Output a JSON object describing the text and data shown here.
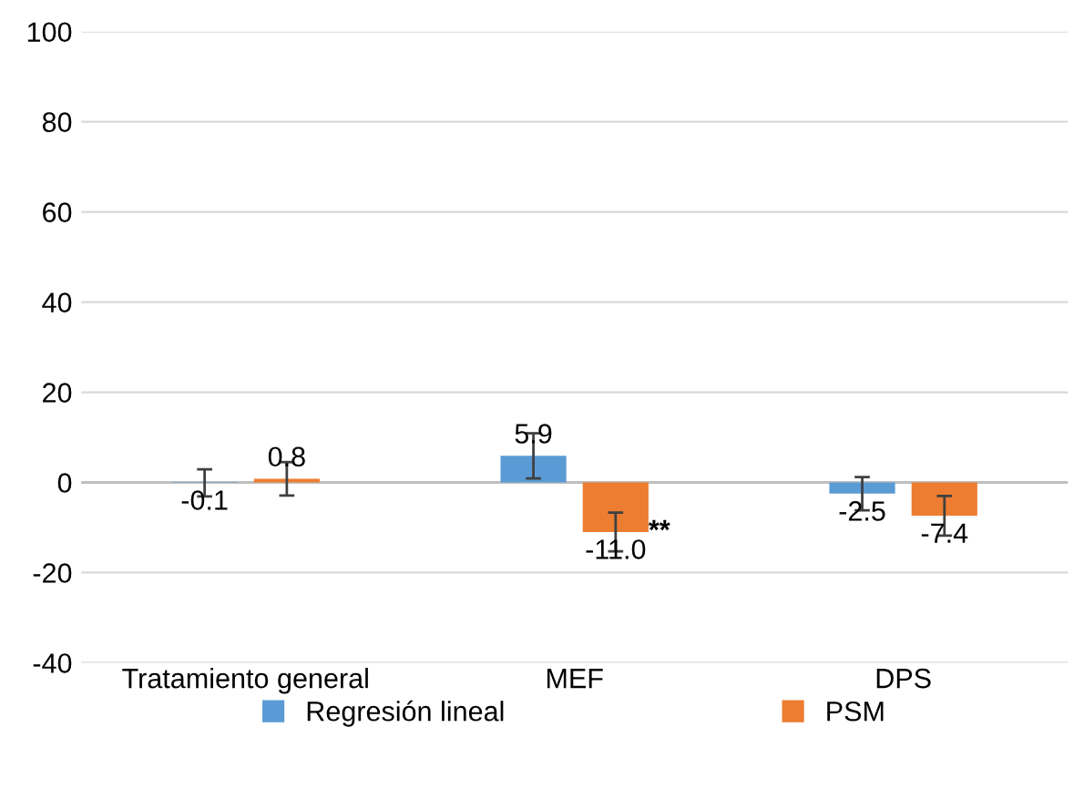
{
  "chart_data": {
    "type": "bar",
    "categories": [
      "Tratamiento general",
      "MEF",
      "DPS"
    ],
    "series": [
      {
        "name": "Regresión lineal",
        "color": "#5b9bd5",
        "values": [
          -0.1,
          5.9,
          -2.5
        ],
        "value_labels": [
          "-0.1",
          "5.9",
          "-2.5"
        ],
        "errors": [
          3.0,
          5.0,
          3.7
        ]
      },
      {
        "name": "PSM",
        "color": "#ed7d31",
        "values": [
          0.8,
          -11.0,
          -7.4
        ],
        "value_labels": [
          "0.8",
          "-11.0",
          "-7.4"
        ],
        "errors": [
          3.7,
          4.3,
          4.4
        ]
      }
    ],
    "ylim": [
      -40,
      100
    ],
    "yticks": [
      -40,
      -20,
      0,
      20,
      40,
      60,
      80,
      100
    ],
    "grid": "y",
    "legend": "bottom",
    "annotations": [
      {
        "text": "**",
        "x": "MEF",
        "y": -11.0
      }
    ]
  }
}
